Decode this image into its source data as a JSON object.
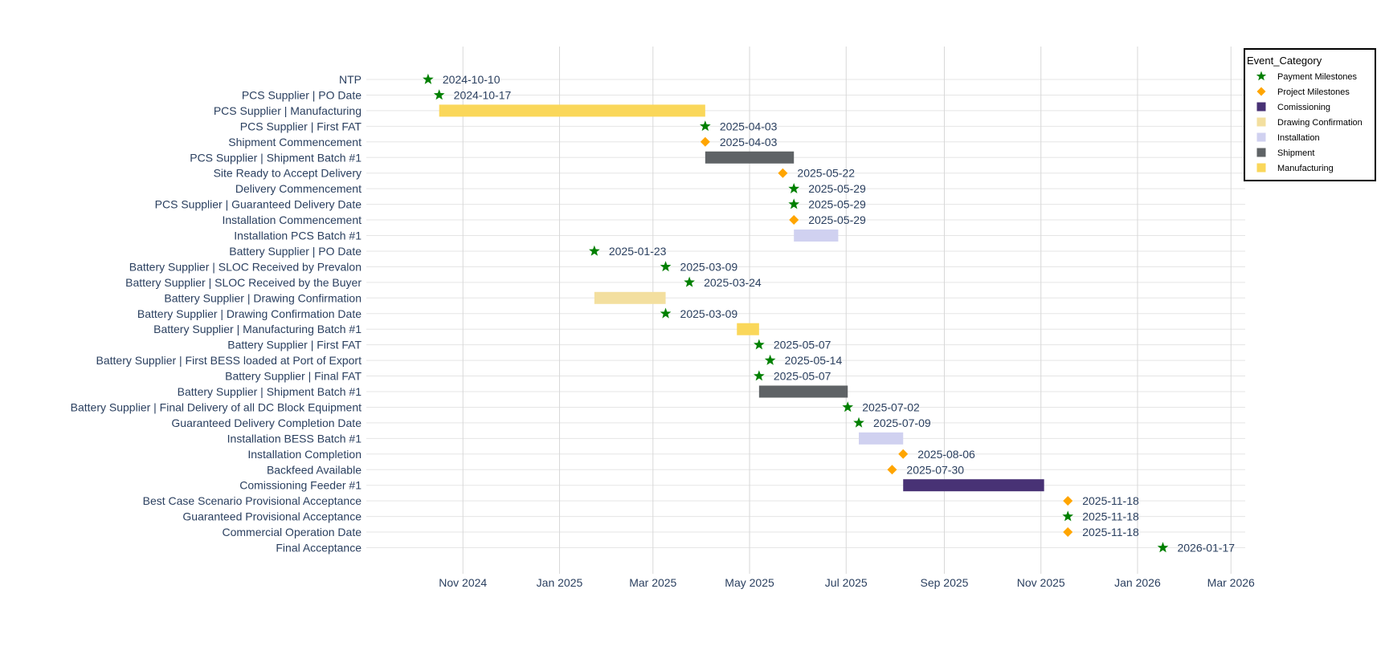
{
  "colors": {
    "payment": "#008000",
    "project": "#ffa500",
    "Comissioning": "#483275",
    "Drawing Confirmation": "#f3df9f",
    "Installation": "#d0d1f0",
    "Shipment": "#5f6366",
    "Manufacturing": "#fad75a",
    "grid": "#e5e5e5",
    "vgrid": "#d8d8d8",
    "tick_text": "#2a3f5f"
  },
  "chart_data": {
    "type": "gantt",
    "xaxis": {
      "type": "date",
      "range": [
        "2024-09-01",
        "2026-03-10"
      ],
      "ticks": [
        {
          "date": "2024-11-01",
          "label": "Nov 2024"
        },
        {
          "date": "2025-01-01",
          "label": "Jan 2025"
        },
        {
          "date": "2025-03-01",
          "label": "Mar 2025"
        },
        {
          "date": "2025-05-01",
          "label": "May 2025"
        },
        {
          "date": "2025-07-01",
          "label": "Jul 2025"
        },
        {
          "date": "2025-09-01",
          "label": "Sep 2025"
        },
        {
          "date": "2025-11-01",
          "label": "Nov 2025"
        },
        {
          "date": "2026-01-01",
          "label": "Jan 2026"
        },
        {
          "date": "2026-03-01",
          "label": "Mar 2026"
        }
      ]
    },
    "legend": {
      "title": "Event_Category",
      "placement": "top-right",
      "entries": [
        {
          "label": "Payment Milestones",
          "symbol": "star",
          "color_key": "payment"
        },
        {
          "label": "Project Milestones",
          "symbol": "diamond",
          "color_key": "project"
        },
        {
          "label": "Comissioning",
          "symbol": "square",
          "color_key": "Comissioning"
        },
        {
          "label": "Drawing Confirmation",
          "symbol": "square",
          "color_key": "Drawing Confirmation"
        },
        {
          "label": "Installation",
          "symbol": "square",
          "color_key": "Installation"
        },
        {
          "label": "Shipment",
          "symbol": "square",
          "color_key": "Shipment"
        },
        {
          "label": "Manufacturing",
          "symbol": "square",
          "color_key": "Manufacturing"
        }
      ]
    },
    "rows": [
      {
        "task": "NTP",
        "kind": "milestone",
        "category": "Payment Milestones",
        "date": "2024-10-10",
        "label": "2024-10-10"
      },
      {
        "task": "PCS Supplier | PO Date",
        "kind": "milestone",
        "category": "Payment Milestones",
        "date": "2024-10-17",
        "label": "2024-10-17"
      },
      {
        "task": "PCS Supplier | Manufacturing",
        "kind": "bar",
        "category": "Manufacturing",
        "start": "2024-10-17",
        "end": "2025-04-03"
      },
      {
        "task": "PCS Supplier | First FAT",
        "kind": "milestone",
        "category": "Payment Milestones",
        "date": "2025-04-03",
        "label": "2025-04-03"
      },
      {
        "task": "Shipment Commencement",
        "kind": "milestone",
        "category": "Project Milestones",
        "date": "2025-04-03",
        "label": "2025-04-03"
      },
      {
        "task": "PCS Supplier | Shipment Batch #1",
        "kind": "bar",
        "category": "Shipment",
        "start": "2025-04-03",
        "end": "2025-05-29"
      },
      {
        "task": "Site Ready to Accept Delivery",
        "kind": "milestone",
        "category": "Project Milestones",
        "date": "2025-05-22",
        "label": "2025-05-22"
      },
      {
        "task": "Delivery Commencement",
        "kind": "milestone",
        "category": "Payment Milestones",
        "date": "2025-05-29",
        "label": "2025-05-29"
      },
      {
        "task": "PCS Supplier | Guaranteed Delivery Date",
        "kind": "milestone",
        "category": "Payment Milestones",
        "date": "2025-05-29",
        "label": "2025-05-29"
      },
      {
        "task": "Installation Commencement",
        "kind": "milestone",
        "category": "Project Milestones",
        "date": "2025-05-29",
        "label": "2025-05-29"
      },
      {
        "task": "Installation PCS Batch #1",
        "kind": "bar",
        "category": "Installation",
        "start": "2025-05-29",
        "end": "2025-06-26"
      },
      {
        "task": "Battery Supplier | PO Date",
        "kind": "milestone",
        "category": "Payment Milestones",
        "date": "2025-01-23",
        "label": "2025-01-23"
      },
      {
        "task": "Battery Supplier | SLOC Received by Prevalon",
        "kind": "milestone",
        "category": "Payment Milestones",
        "date": "2025-03-09",
        "label": "2025-03-09"
      },
      {
        "task": "Battery Supplier | SLOC Received by the Buyer",
        "kind": "milestone",
        "category": "Payment Milestones",
        "date": "2025-03-24",
        "label": "2025-03-24"
      },
      {
        "task": "Battery Supplier | Drawing Confirmation",
        "kind": "bar",
        "category": "Drawing Confirmation",
        "start": "2025-01-23",
        "end": "2025-03-09"
      },
      {
        "task": "Battery Supplier | Drawing Confirmation Date",
        "kind": "milestone",
        "category": "Payment Milestones",
        "date": "2025-03-09",
        "label": "2025-03-09"
      },
      {
        "task": "Battery Supplier | Manufacturing Batch #1",
        "kind": "bar",
        "category": "Manufacturing",
        "start": "2025-04-23",
        "end": "2025-05-07"
      },
      {
        "task": "Battery Supplier | First FAT",
        "kind": "milestone",
        "category": "Payment Milestones",
        "date": "2025-05-07",
        "label": "2025-05-07"
      },
      {
        "task": "Battery Supplier | First BESS loaded at Port of Export",
        "kind": "milestone",
        "category": "Payment Milestones",
        "date": "2025-05-14",
        "label": "2025-05-14"
      },
      {
        "task": "Battery Supplier | Final FAT",
        "kind": "milestone",
        "category": "Payment Milestones",
        "date": "2025-05-07",
        "label": "2025-05-07"
      },
      {
        "task": "Battery Supplier | Shipment Batch #1",
        "kind": "bar",
        "category": "Shipment",
        "start": "2025-05-07",
        "end": "2025-07-02"
      },
      {
        "task": "Battery Supplier | Final Delivery of all DC Block Equipment",
        "kind": "milestone",
        "category": "Payment Milestones",
        "date": "2025-07-02",
        "label": "2025-07-02"
      },
      {
        "task": "Guaranteed Delivery Completion Date",
        "kind": "milestone",
        "category": "Payment Milestones",
        "date": "2025-07-09",
        "label": "2025-07-09"
      },
      {
        "task": "Installation BESS Batch #1",
        "kind": "bar",
        "category": "Installation",
        "start": "2025-07-09",
        "end": "2025-08-06"
      },
      {
        "task": "Installation Completion",
        "kind": "milestone",
        "category": "Project Milestones",
        "date": "2025-08-06",
        "label": "2025-08-06"
      },
      {
        "task": "Backfeed Available",
        "kind": "milestone",
        "category": "Project Milestones",
        "date": "2025-07-30",
        "label": "2025-07-30"
      },
      {
        "task": "Comissioning Feeder #1",
        "kind": "bar",
        "category": "Comissioning",
        "start": "2025-08-06",
        "end": "2025-11-03"
      },
      {
        "task": "Best Case Scenario Provisional Acceptance",
        "kind": "milestone",
        "category": "Project Milestones",
        "date": "2025-11-18",
        "label": "2025-11-18"
      },
      {
        "task": "Guaranteed Provisional Acceptance",
        "kind": "milestone",
        "category": "Payment Milestones",
        "date": "2025-11-18",
        "label": "2025-11-18"
      },
      {
        "task": "Commercial Operation Date",
        "kind": "milestone",
        "category": "Project Milestones",
        "date": "2025-11-18",
        "label": "2025-11-18"
      },
      {
        "task": "Final Acceptance",
        "kind": "milestone",
        "category": "Payment Milestones",
        "date": "2026-01-17",
        "label": "2026-01-17"
      }
    ]
  }
}
